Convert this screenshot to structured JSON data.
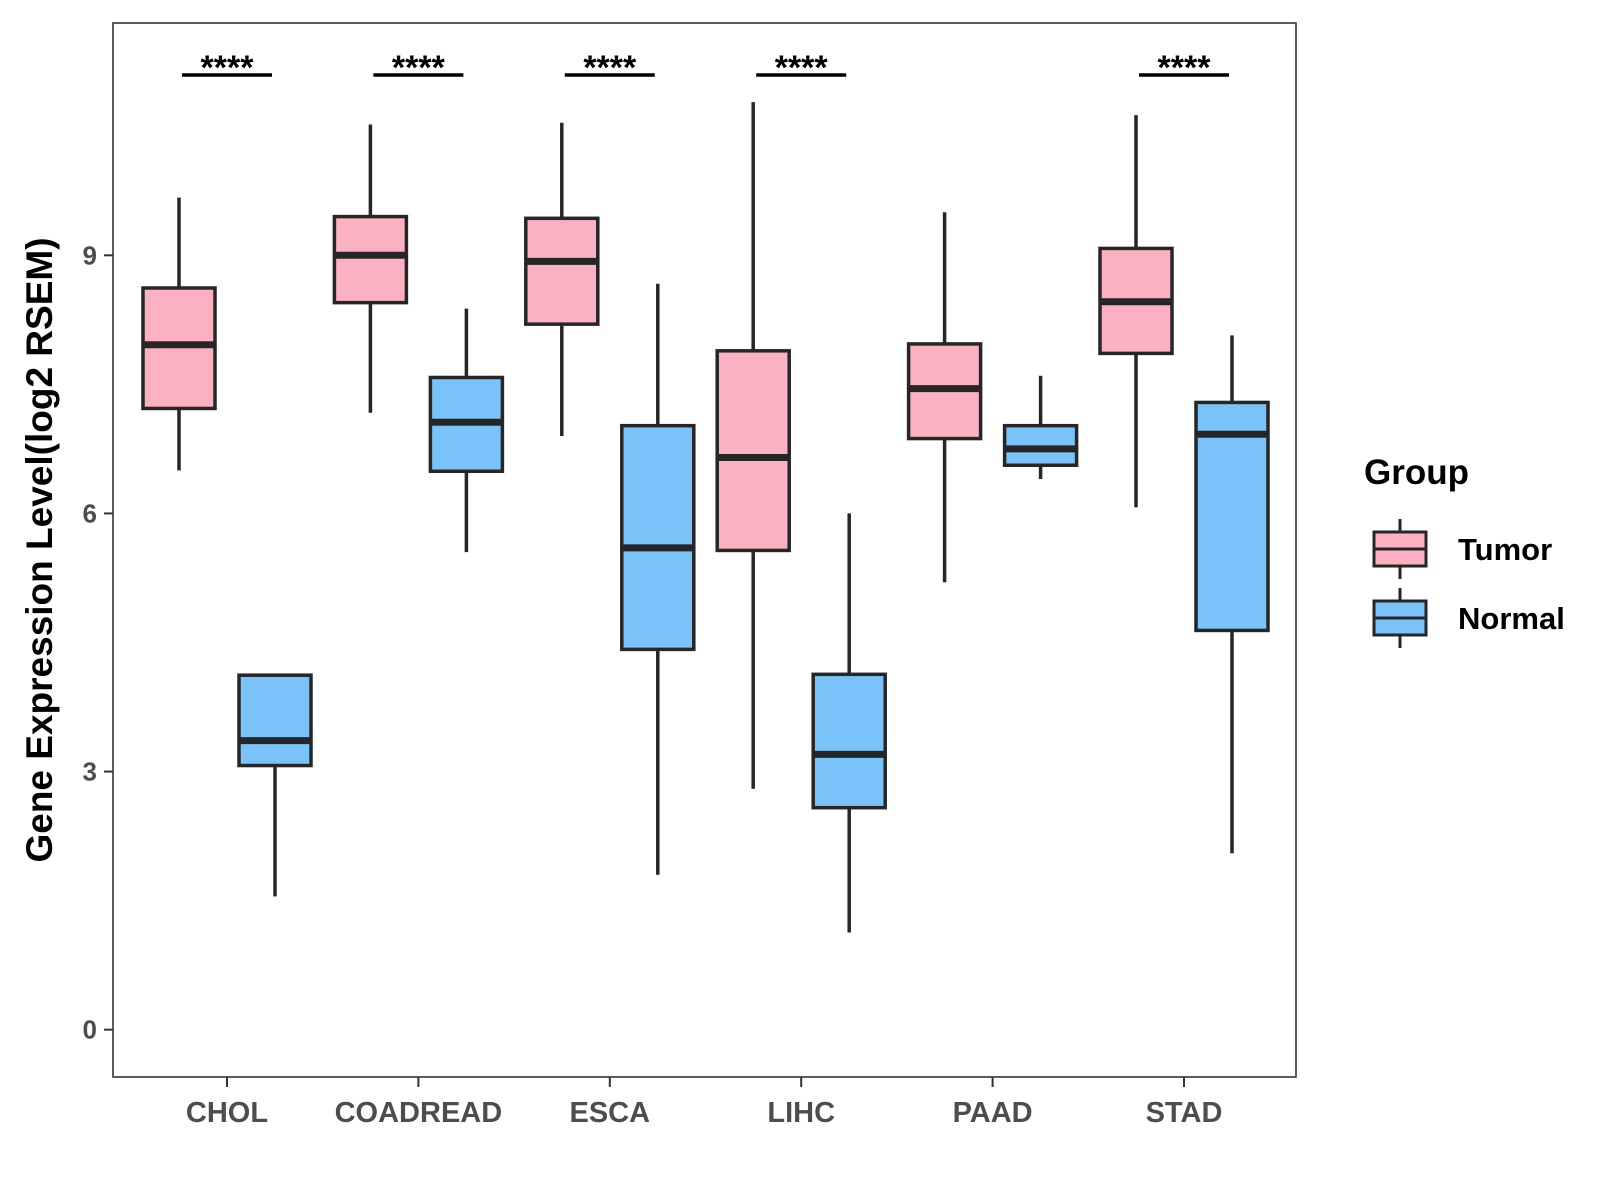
{
  "chart_data": {
    "type": "boxplot",
    "title": "",
    "xlabel": "",
    "ylabel": "Gene Expression Level(log2 RSEM)",
    "ylim": [
      -0.55,
      11.7
    ],
    "yticks": [
      "0",
      "3",
      "6",
      "9"
    ],
    "categories": [
      "CHOL",
      "COADREAD",
      "ESCA",
      "LIHC",
      "PAAD",
      "STAD"
    ],
    "legend": {
      "title": "Group",
      "position": "right",
      "entries": [
        {
          "name": "Tumor",
          "color": "#fbb1c2"
        },
        {
          "name": "Normal",
          "color": "#7ac3f8"
        }
      ]
    },
    "series": [
      {
        "name": "Tumor",
        "color": "#fbb1c2",
        "boxes": [
          {
            "min": 6.5,
            "q1": 7.22,
            "median": 7.96,
            "q3": 8.62,
            "max": 9.67
          },
          {
            "min": 7.17,
            "q1": 8.45,
            "median": 9.0,
            "q3": 9.45,
            "max": 10.52
          },
          {
            "min": 6.9,
            "q1": 8.2,
            "median": 8.93,
            "q3": 9.43,
            "max": 10.54
          },
          {
            "min": 2.8,
            "q1": 5.57,
            "median": 6.65,
            "q3": 7.89,
            "max": 10.78
          },
          {
            "min": 5.2,
            "q1": 6.87,
            "median": 7.45,
            "q3": 7.97,
            "max": 9.5
          },
          {
            "min": 6.07,
            "q1": 7.86,
            "median": 8.46,
            "q3": 9.08,
            "max": 10.63
          }
        ]
      },
      {
        "name": "Normal",
        "color": "#7ac3f8",
        "boxes": [
          {
            "min": 1.55,
            "q1": 3.07,
            "median": 3.36,
            "q3": 4.12,
            "max": 4.12
          },
          {
            "min": 5.55,
            "q1": 6.49,
            "median": 7.06,
            "q3": 7.58,
            "max": 8.38
          },
          {
            "min": 1.8,
            "q1": 4.42,
            "median": 5.6,
            "q3": 7.02,
            "max": 8.67
          },
          {
            "min": 1.13,
            "q1": 2.58,
            "median": 3.2,
            "q3": 4.13,
            "max": 6.0
          },
          {
            "min": 6.4,
            "q1": 6.56,
            "median": 6.75,
            "q3": 7.02,
            "max": 7.6
          },
          {
            "min": 2.05,
            "q1": 4.64,
            "median": 6.92,
            "q3": 7.29,
            "max": 8.07
          }
        ]
      }
    ],
    "significance": [
      {
        "category": "CHOL",
        "label": "****"
      },
      {
        "category": "COADREAD",
        "label": "****"
      },
      {
        "category": "ESCA",
        "label": "****"
      },
      {
        "category": "LIHC",
        "label": "****"
      },
      {
        "category": "STAD",
        "label": "****"
      }
    ]
  }
}
